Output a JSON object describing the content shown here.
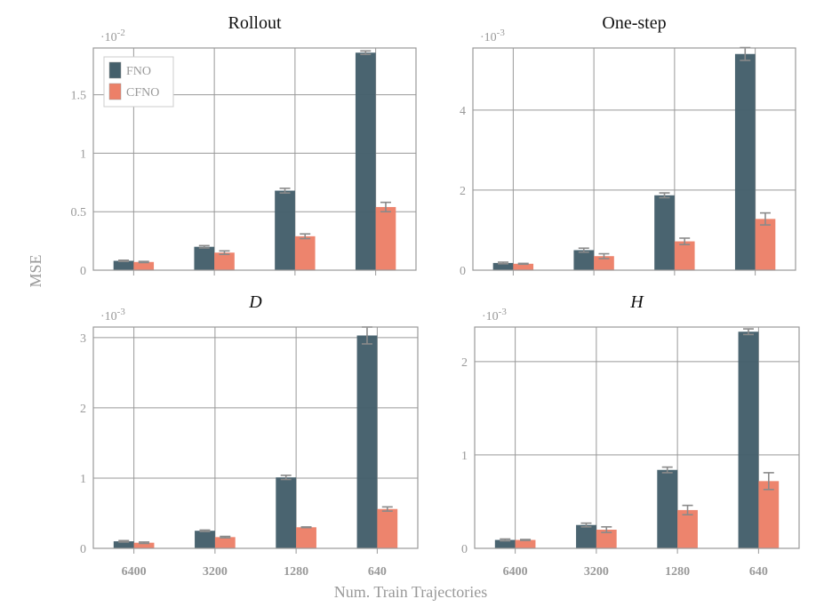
{
  "chart_data": [
    {
      "type": "bar",
      "title": "Rollout",
      "title_italic": false,
      "exponent": "-2",
      "categories": [
        "6400",
        "3200",
        "1280",
        "640"
      ],
      "ylim": [
        0,
        1.9
      ],
      "yticks": [
        0,
        0.5,
        1,
        1.5
      ],
      "ytick_labels": [
        "0",
        "0.5",
        "1",
        "1.5"
      ],
      "grid": true,
      "legend": "top-left",
      "series": [
        {
          "name": "FNO",
          "values": [
            0.08,
            0.2,
            0.68,
            1.86
          ],
          "errors": [
            0.005,
            0.01,
            0.02,
            0.015
          ]
        },
        {
          "name": "CFNO",
          "values": [
            0.07,
            0.15,
            0.29,
            0.54
          ],
          "errors": [
            0.005,
            0.015,
            0.02,
            0.04
          ]
        }
      ]
    },
    {
      "type": "bar",
      "title": "One-step",
      "title_italic": false,
      "exponent": "-3",
      "categories": [
        "6400",
        "3200",
        "1280",
        "640"
      ],
      "ylim": [
        0,
        5.55
      ],
      "yticks": [
        0,
        2,
        4
      ],
      "ytick_labels": [
        "0",
        "2",
        "4"
      ],
      "grid": true,
      "series": [
        {
          "name": "FNO",
          "values": [
            0.18,
            0.5,
            1.87,
            5.4
          ],
          "errors": [
            0.02,
            0.05,
            0.06,
            0.16
          ]
        },
        {
          "name": "CFNO",
          "values": [
            0.16,
            0.35,
            0.72,
            1.28
          ],
          "errors": [
            0.01,
            0.06,
            0.08,
            0.15
          ]
        }
      ]
    },
    {
      "type": "bar",
      "title": "D",
      "title_italic": true,
      "exponent": "-3",
      "categories": [
        "6400",
        "3200",
        "1280",
        "640"
      ],
      "ylim": [
        0,
        3.15
      ],
      "yticks": [
        0,
        1,
        2,
        3
      ],
      "ytick_labels": [
        "0",
        "1",
        "2",
        "3"
      ],
      "grid": true,
      "series": [
        {
          "name": "FNO",
          "values": [
            0.1,
            0.25,
            1.01,
            3.03
          ],
          "errors": [
            0.01,
            0.01,
            0.03,
            0.12
          ]
        },
        {
          "name": "CFNO",
          "values": [
            0.08,
            0.16,
            0.3,
            0.56
          ],
          "errors": [
            0.01,
            0.01,
            0.005,
            0.03
          ]
        }
      ]
    },
    {
      "type": "bar",
      "title": "H",
      "title_italic": true,
      "exponent": "-3",
      "categories": [
        "6400",
        "3200",
        "1280",
        "640"
      ],
      "ylim": [
        0,
        2.37
      ],
      "yticks": [
        0,
        1,
        2
      ],
      "ytick_labels": [
        "0",
        "1",
        "2"
      ],
      "grid": true,
      "series": [
        {
          "name": "FNO",
          "values": [
            0.09,
            0.25,
            0.84,
            2.32
          ],
          "errors": [
            0.01,
            0.02,
            0.03,
            0.03
          ]
        },
        {
          "name": "CFNO",
          "values": [
            0.09,
            0.2,
            0.41,
            0.72
          ],
          "errors": [
            0.005,
            0.03,
            0.05,
            0.09
          ]
        }
      ]
    }
  ],
  "ylabel": "MSE",
  "xlabel": "Num. Train Trajectories",
  "exponent_base": "·10",
  "colors": {
    "FNO": "#445f6b",
    "CFNO": "#ec8068",
    "grid": "#999999",
    "text": "#999999"
  }
}
